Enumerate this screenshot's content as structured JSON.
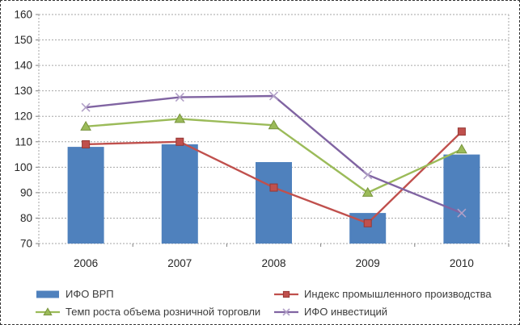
{
  "chart_data": {
    "type": "bar",
    "subtype": "bar-line-combo",
    "title": "",
    "xlabel": "",
    "ylabel": "",
    "categories": [
      "2006",
      "2007",
      "2008",
      "2009",
      "2010"
    ],
    "series": [
      {
        "name": "ИФО ВРП",
        "type": "bar",
        "marker": "rect",
        "color": "#4f81bd",
        "values": [
          108,
          109,
          102,
          82,
          105
        ]
      },
      {
        "name": "Индекс промышленного производства",
        "type": "line",
        "marker": "square",
        "color": "#c0504d",
        "marker_color": "#c0504d",
        "marker_border": "#953735",
        "values": [
          109,
          110,
          92,
          78,
          114
        ]
      },
      {
        "name": "Темп роста объема розничной торговли",
        "type": "line",
        "marker": "triangle",
        "color": "#9bbb59",
        "marker_color": "#9bbb59",
        "marker_border": "#77933c",
        "values": [
          116,
          119,
          116.5,
          90,
          107
        ]
      },
      {
        "name": "ИФО инвестиций",
        "type": "line",
        "marker": "x",
        "color": "#8064a2",
        "marker_color": "#b1a0c7",
        "values": [
          123.5,
          127.5,
          128,
          97,
          82
        ]
      }
    ],
    "ylim": [
      70,
      160
    ],
    "yticks": [
      70,
      80,
      90,
      100,
      110,
      120,
      130,
      140,
      150,
      160
    ],
    "grid": true,
    "gridline_style": "dotted",
    "legend_position": "bottom"
  },
  "colors": {
    "background": "#ffffff",
    "frame_border": "#333333",
    "gridline": "#a6a6a6",
    "tick": "#808080",
    "axis_text": "#262626",
    "legend_text": "#3b3b3b"
  }
}
